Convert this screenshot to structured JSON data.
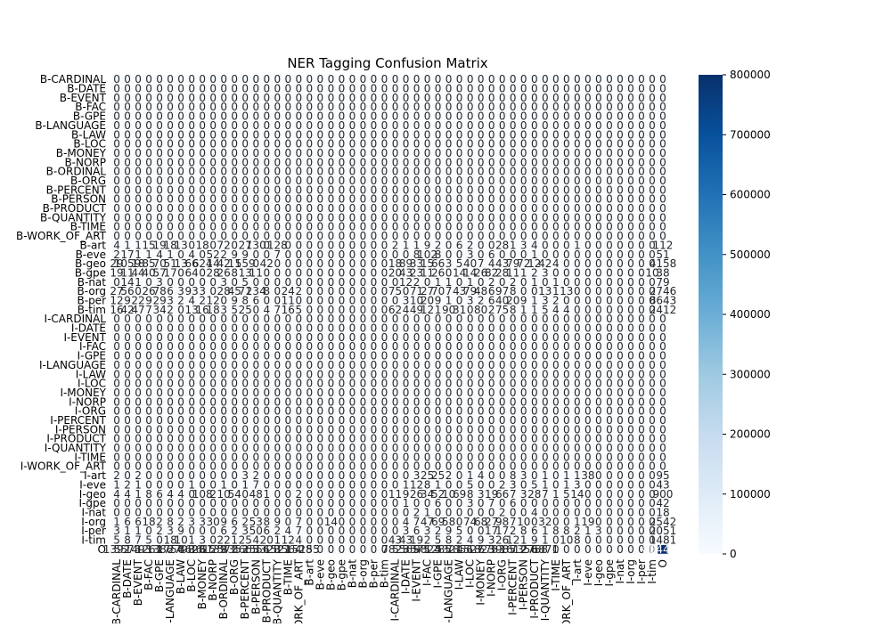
{
  "chart_data": {
    "type": "heatmap",
    "title": "NER Tagging Confusion Matrix",
    "xlabel": "",
    "ylabel": "",
    "labels": [
      "B-CARDINAL",
      "B-DATE",
      "B-EVENT",
      "B-FAC",
      "B-GPE",
      "B-LANGUAGE",
      "B-LAW",
      "B-LOC",
      "B-MONEY",
      "B-NORP",
      "B-ORDINAL",
      "B-ORG",
      "B-PERCENT",
      "B-PERSON",
      "B-PRODUCT",
      "B-QUANTITY",
      "B-TIME",
      "B-WORK_OF_ART",
      "B-art",
      "B-eve",
      "B-geo",
      "B-gpe",
      "B-nat",
      "B-org",
      "B-per",
      "B-tim",
      "I-CARDINAL",
      "I-DATE",
      "I-EVENT",
      "I-FAC",
      "I-GPE",
      "I-LANGUAGE",
      "I-LAW",
      "I-LOC",
      "I-MONEY",
      "I-NORP",
      "I-ORG",
      "I-PERCENT",
      "I-PERSON",
      "I-PRODUCT",
      "I-QUANTITY",
      "I-TIME",
      "I-WORK_OF_ART",
      "I-art",
      "I-eve",
      "I-geo",
      "I-gpe",
      "I-nat",
      "I-org",
      "I-per",
      "I-tim",
      "O"
    ],
    "rows": {
      "B-art": {
        "0": 4,
        "1": 1,
        "2": 1,
        "3": 15,
        "4": 19,
        "5": 18,
        "6": 13,
        "8": 18,
        "9": 0,
        "10": 72,
        "12": 27,
        "13": 130,
        "15": 128,
        "26": 2,
        "27": 1,
        "28": 1,
        "29": 9,
        "30": 2,
        "32": 6,
        "33": 2,
        "36": 28,
        "37": 1,
        "38": 3,
        "39": 4,
        "42": 0,
        "43": 1,
        "44": 0,
        "51": 112
      },
      "B-eve": {
        "0": 2,
        "1": 17,
        "2": 1,
        "3": 1,
        "4": 4,
        "5": 1,
        "6": 0,
        "7": 4,
        "8": 0,
        "9": 52,
        "10": 2,
        "11": 9,
        "12": 9,
        "14": 0,
        "15": 7,
        "27": 0,
        "28": 8,
        "29": 102,
        "30": 8,
        "33": 3,
        "35": 6,
        "37": 0,
        "39": 1,
        "51": 51
      },
      "B-geo": {
        "0": 29,
        "1": 1059,
        "2": 18,
        "3": 85,
        "4": 70,
        "5": 51,
        "6": 13,
        "7": 66,
        "8": 624,
        "9": 14,
        "10": 42,
        "11": 11,
        "12": 559,
        "13": 0,
        "14": 42,
        "15": 0,
        "26": 18,
        "27": 89,
        "28": 33,
        "29": 15,
        "30": 66,
        "31": 3,
        "32": 5,
        "33": 40,
        "34": 7,
        "35": 4,
        "36": 43,
        "37": 79,
        "38": 72,
        "39": 12,
        "40": 42,
        "41": 4,
        "51": 4158
      },
      "B-gpe": {
        "0": 19,
        "1": 11,
        "2": 44,
        "3": 40,
        "4": 57,
        "5": 17,
        "6": 0,
        "7": 64,
        "8": 0,
        "9": 28,
        "10": 26,
        "11": 8,
        "12": 13,
        "13": 11,
        "26": 20,
        "27": 43,
        "28": 23,
        "29": 11,
        "30": 26,
        "31": 0,
        "32": 14,
        "33": 14,
        "34": 26,
        "35": 82,
        "36": 28,
        "37": 11,
        "38": 1,
        "39": 2,
        "40": 3,
        "50": 10,
        "51": 38
      },
      "B-nat": {
        "0": 0,
        "1": 14,
        "2": 1,
        "3": 0,
        "4": 3,
        "9": 0,
        "10": 3,
        "12": 5,
        "26": 0,
        "27": 12,
        "28": 2,
        "29": 0,
        "30": 1,
        "31": 1,
        "32": 0,
        "33": 1,
        "34": 0,
        "35": 2,
        "37": 2,
        "38": 0,
        "39": 1,
        "40": 0,
        "41": 1,
        "51": 79
      },
      "B-org": {
        "0": 27,
        "1": 56,
        "2": 0,
        "3": 26,
        "4": 78,
        "5": 6,
        "6": 3,
        "7": 93,
        "8": 3,
        "9": 0,
        "10": 28,
        "11": 45,
        "12": 71,
        "13": 234,
        "14": 8,
        "15": 0,
        "16": 24,
        "17": 2,
        "26": 75,
        "27": 0,
        "28": 71,
        "29": 27,
        "30": 70,
        "31": 7,
        "32": 43,
        "33": 79,
        "34": 48,
        "35": 6,
        "36": 97,
        "37": 8,
        "38": 0,
        "39": 0,
        "40": 13,
        "41": 1,
        "42": 13,
        "51": 2746
      },
      "B-per": {
        "0": 12,
        "1": 9,
        "2": 22,
        "3": 9,
        "4": 29,
        "5": 3,
        "6": 2,
        "7": 4,
        "8": 2,
        "9": 12,
        "10": 0,
        "11": 9,
        "12": 8,
        "13": 6,
        "14": 0,
        "15": 0,
        "16": 11,
        "27": 3,
        "28": 10,
        "29": 20,
        "30": 9,
        "31": 1,
        "32": 0,
        "33": 3,
        "34": 2,
        "35": 6,
        "36": 40,
        "37": 20,
        "38": 9,
        "39": 1,
        "40": 3,
        "41": 2,
        "51": 8643
      },
      "B-tim": {
        "0": 16,
        "1": 42,
        "2": 47,
        "3": 7,
        "4": 34,
        "5": 2,
        "6": 0,
        "7": 13,
        "8": 16,
        "9": 18,
        "10": 3,
        "11": 5,
        "12": 25,
        "13": 0,
        "14": 4,
        "15": 7,
        "16": 16,
        "17": 5,
        "26": 62,
        "27": 4,
        "28": 49,
        "29": 12,
        "30": 1,
        "31": 90,
        "32": 31,
        "33": 0,
        "34": 80,
        "35": 2,
        "36": 75,
        "37": 8,
        "38": 1,
        "39": 1,
        "40": 5,
        "41": 4,
        "42": 4,
        "51": 2412
      },
      "I-art": {
        "0": 2,
        "1": 0,
        "2": 2,
        "3": 0,
        "4": 0,
        "5": 0,
        "6": 0,
        "7": 0,
        "8": 0,
        "9": 0,
        "10": 0,
        "11": 0,
        "12": 3,
        "13": 2,
        "26": 0,
        "27": 0,
        "28": 3,
        "29": 25,
        "30": 25,
        "31": 2,
        "32": 0,
        "33": 1,
        "34": 4,
        "36": 0,
        "37": 8,
        "38": 3,
        "39": 0,
        "40": 1,
        "41": 0,
        "42": 1,
        "43": 1,
        "44": 38,
        "51": 95
      },
      "I-eve": {
        "0": 1,
        "1": 2,
        "2": 1,
        "3": 0,
        "4": 0,
        "6": 0,
        "7": 1,
        "8": 0,
        "9": 0,
        "10": 1,
        "11": 0,
        "12": 1,
        "13": 7,
        "26": 0,
        "27": 1,
        "28": 12,
        "29": 8,
        "30": 1,
        "31": 0,
        "32": 0,
        "33": 5,
        "34": 0,
        "35": 0,
        "36": 2,
        "37": 3,
        "38": 0,
        "39": 5,
        "40": 1,
        "41": 0,
        "42": 1,
        "43": 3,
        "51": 43
      },
      "I-geo": {
        "0": 4,
        "1": 4,
        "2": 1,
        "3": 8,
        "4": 6,
        "5": 4,
        "6": 4,
        "7": 0,
        "8": 108,
        "9": 2,
        "10": 10,
        "11": 54,
        "12": 0,
        "13": 48,
        "14": 1,
        "16": 0,
        "17": 2,
        "26": 11,
        "27": 9,
        "28": 26,
        "29": 34,
        "30": 52,
        "31": 10,
        "32": 69,
        "33": 8,
        "34": 3,
        "35": 19,
        "36": 66,
        "37": 7,
        "38": 3,
        "39": 28,
        "40": 7,
        "41": 1,
        "42": 5,
        "43": 14,
        "51": 900
      },
      "I-gpe": {
        "27": 1,
        "28": 0,
        "29": 0,
        "30": 6,
        "31": 0,
        "32": 0,
        "33": 3,
        "34": 0,
        "35": 7,
        "36": 0,
        "37": 6,
        "51": 42
      },
      "I-nat": {
        "27": 0,
        "28": 2,
        "29": 1,
        "30": 0,
        "31": 0,
        "32": 0,
        "33": 0,
        "34": 0,
        "35": 0,
        "36": 2,
        "37": 0,
        "38": 0,
        "39": 4,
        "40": 0,
        "41": 0,
        "51": 18
      },
      "I-org": {
        "0": 1,
        "1": 6,
        "2": 6,
        "3": 18,
        "4": 2,
        "5": 8,
        "6": 2,
        "7": 3,
        "8": 3,
        "9": 30,
        "10": 9,
        "11": 6,
        "12": 2,
        "13": 53,
        "14": 8,
        "15": 9,
        "16": 0,
        "17": 7,
        "19": 0,
        "20": 14,
        "26": 0,
        "27": 4,
        "28": 7,
        "29": 47,
        "30": 69,
        "31": 58,
        "32": 0,
        "33": 74,
        "34": 68,
        "35": 27,
        "36": 98,
        "37": 7,
        "38": 10,
        "39": 0,
        "40": 32,
        "41": 0,
        "42": 0,
        "43": 1,
        "44": 19,
        "51": 2542
      },
      "I-per": {
        "0": 3,
        "1": 1,
        "2": 1,
        "3": 0,
        "4": 2,
        "5": 3,
        "6": 9,
        "7": 0,
        "8": 0,
        "9": 0,
        "10": 6,
        "11": 2,
        "12": 3,
        "13": 50,
        "14": 6,
        "15": 2,
        "16": 4,
        "17": 7,
        "26": 0,
        "27": 3,
        "28": 6,
        "29": 3,
        "30": 2,
        "31": 9,
        "32": 5,
        "33": 0,
        "34": 0,
        "35": 17,
        "36": 17,
        "37": 2,
        "38": 8,
        "39": 6,
        "40": 1,
        "41": 8,
        "42": 8,
        "43": 2,
        "44": 1,
        "45": 3,
        "51": 2051
      },
      "I-tim": {
        "0": 5,
        "1": 8,
        "2": 7,
        "3": 5,
        "4": 0,
        "5": 18,
        "6": 10,
        "7": 1,
        "8": 3,
        "9": 0,
        "10": 22,
        "11": 1,
        "12": 25,
        "13": 4,
        "14": 20,
        "15": 1,
        "16": 12,
        "17": 4,
        "26": 43,
        "27": 43,
        "28": 19,
        "29": 2,
        "30": 5,
        "31": 8,
        "32": 2,
        "33": 4,
        "34": 9,
        "35": 3,
        "36": 26,
        "37": 12,
        "38": 1,
        "39": 9,
        "40": 1,
        "41": 0,
        "42": 10,
        "43": 8,
        "51": 1481
      },
      "O": {
        "0": 1392,
        "1": 5573,
        "2": 1493,
        "3": 1261,
        "4": 1386,
        "5": 1754,
        "6": 2798,
        "7": 8628,
        "8": 3615,
        "9": 6139,
        "10": 2571,
        "11": 8353,
        "12": 3665,
        "13": 2556,
        "14": 3328,
        "15": 1521,
        "16": 3564,
        "17": 1528,
        "18": 155,
        "26": 7825,
        "27": 5565,
        "28": 3575,
        "29": 9824,
        "30": 1285,
        "31": 5321,
        "32": 7856,
        "33": 4527,
        "34": 1823,
        "35": 6733,
        "36": 3985,
        "37": 1612,
        "38": 7356,
        "39": 2758,
        "40": 6871,
        "51": 804456
      }
    },
    "colorbar": {
      "min": 0,
      "max": 800000,
      "ticks": [
        0,
        100000,
        200000,
        300000,
        400000,
        500000,
        600000,
        700000,
        800000
      ]
    },
    "colors": {
      "low": "#f7fbff",
      "high": "#08306b",
      "grid": "#ffffff"
    },
    "grid": true,
    "legend": "colorbar-right"
  }
}
